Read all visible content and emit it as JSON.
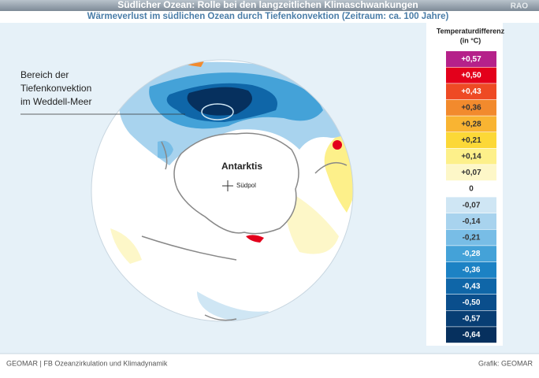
{
  "header": {
    "title": "Südlicher Ozean: Rolle bei den langzeitlichen Klimaschwankungen",
    "subtitle": "Wärmeverlust im südlichen Ozean durch Tiefenkonvektion (Zeitraum: ca. 100 Jahre)",
    "tag": "RAO"
  },
  "map": {
    "annotation": [
      "Bereich der",
      "Tiefenkonvektion",
      "im Weddell-Meer"
    ],
    "continent": "Antarktis",
    "pole": "Südpol"
  },
  "legend": {
    "title": [
      "Temperaturdifferenz",
      "(in °C)"
    ],
    "items": [
      {
        "label": "+0,57",
        "color": "#b5218a"
      },
      {
        "label": "+0,50",
        "color": "#e3001b"
      },
      {
        "label": "+0,43",
        "color": "#ee4a24"
      },
      {
        "label": "+0,36",
        "color": "#f28a2d"
      },
      {
        "label": "+0,28",
        "color": "#f9b432"
      },
      {
        "label": "+0,21",
        "color": "#fcd837"
      },
      {
        "label": "+0,14",
        "color": "#fdf08a"
      },
      {
        "label": "+0,07",
        "color": "#fdf7c8"
      },
      {
        "label": "0",
        "color": "#ffffff"
      },
      {
        "label": "-0,07",
        "color": "#cfe6f4"
      },
      {
        "label": "-0,14",
        "color": "#a8d3ee"
      },
      {
        "label": "-0,21",
        "color": "#78bde6"
      },
      {
        "label": "-0,28",
        "color": "#44a2d8"
      },
      {
        "label": "-0,36",
        "color": "#1c82c4"
      },
      {
        "label": "-0,43",
        "color": "#0f66a8"
      },
      {
        "label": "-0,50",
        "color": "#0a4e8c"
      },
      {
        "label": "-0,57",
        "color": "#083e74"
      },
      {
        "label": "-0,64",
        "color": "#06305e"
      }
    ]
  },
  "footer": {
    "left": "GEOMAR | FB Ozeanzirkulation und Klimadynamik",
    "right": "Grafik: GEOMAR"
  }
}
